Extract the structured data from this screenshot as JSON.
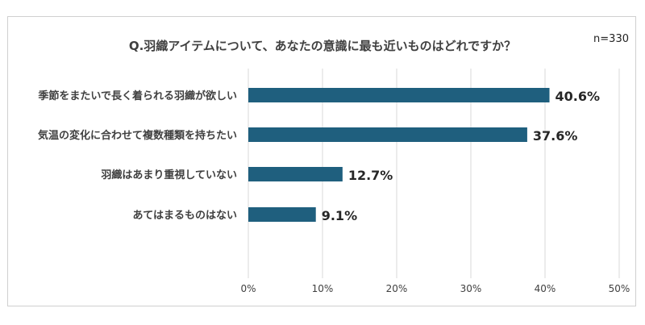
{
  "chart_data": {
    "type": "bar",
    "orientation": "horizontal",
    "title": "Q.羽織アイテムについて、あなたの意識に最も近いものはどれですか？",
    "annotation": "n=330",
    "categories": [
      "季節をまたいで長く着られる羽織が欲しい",
      "気温の変化に合わせて複数種類を持ちたい",
      "羽織はあまり重視していない",
      "あてはまるものはない"
    ],
    "values": [
      40.6,
      37.6,
      12.7,
      9.1
    ],
    "value_labels": [
      "40.6%",
      "37.6%",
      "12.7%",
      "9.1%"
    ],
    "xlim": [
      0,
      50
    ],
    "x_ticks": [
      "0%",
      "10%",
      "20%",
      "30%",
      "40%",
      "50%"
    ],
    "x_tick_values": [
      0,
      10,
      20,
      30,
      40,
      50
    ],
    "grid": true,
    "bar_color": "#1f5f7e"
  }
}
